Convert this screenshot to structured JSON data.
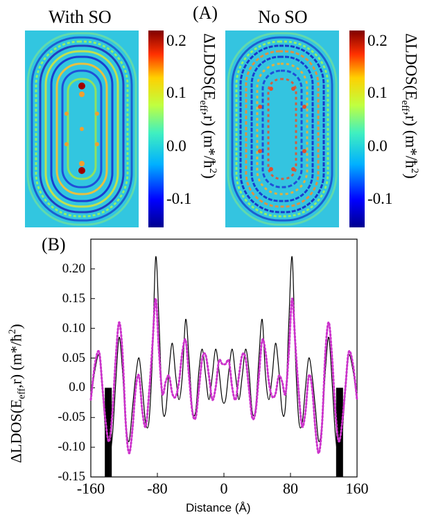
{
  "panel_a": {
    "label": "(A)",
    "left_title": "With SO",
    "right_title": "No SO",
    "colorbar_ticks": [
      "0.2",
      "0.1",
      "0.0",
      "-0.1"
    ],
    "colorbar_label_main": "ΔLDOS(E",
    "colorbar_label_sub": "eff",
    "colorbar_label_rest": ",r) (m*/ħ",
    "colorbar_label_sup": "2",
    "colorbar_label_end": ")",
    "colorbar_range": [
      -0.15,
      0.22
    ],
    "colors": {
      "low": "#00008f",
      "mid": "#7fff7f",
      "high": "#800000",
      "background": "#35c8e0"
    }
  },
  "panel_b": {
    "label": "(B)",
    "ylabel_main": "ΔLDOS(E",
    "ylabel_sub": "eff",
    "ylabel_rest": ",r) (m*/ħ",
    "ylabel_sup": "2",
    "ylabel_end": ")",
    "xlabel": "Distance (Å)"
  },
  "chart_data": {
    "type": "line",
    "title": "",
    "xlabel": "Distance (Å)",
    "ylabel": "ΔLDOS(Eeff,r) (m*/ħ2)",
    "xlim": [
      -160,
      160
    ],
    "ylim": [
      -0.15,
      0.25
    ],
    "xticks": [
      "-160",
      "-80",
      "0",
      "80",
      "160"
    ],
    "yticks": [
      "-0.15",
      "-0.10",
      "-0.05",
      "0.0",
      "0.05",
      "0.10",
      "0.15",
      "0.20"
    ],
    "ytick_values": [
      -0.15,
      -0.1,
      -0.05,
      0.0,
      0.05,
      0.1,
      0.15,
      0.2
    ],
    "xtick_values": [
      -160,
      -80,
      0,
      80,
      160
    ],
    "series": [
      {
        "name": "With SO",
        "style": "solid",
        "color": "#000000",
        "x": [
          -160,
          -155,
          -150,
          -146,
          -142,
          -138,
          -134,
          -130,
          -126,
          -122,
          -118,
          -114,
          -110,
          -106,
          -102,
          -98,
          -94,
          -90,
          -86,
          -82,
          -78,
          -74,
          -70,
          -66,
          -62,
          -58,
          -54,
          -50,
          -46,
          -42,
          -38,
          -34,
          -30,
          -26,
          -22,
          -18,
          -14,
          -10,
          -6,
          -2,
          2,
          6,
          10,
          14,
          18,
          22,
          26,
          30,
          34,
          38,
          42,
          46,
          50,
          54,
          58,
          62,
          66,
          70,
          74,
          78,
          82,
          86,
          90,
          94,
          98,
          102,
          106,
          110,
          114,
          118,
          122,
          126,
          130,
          134,
          138,
          142,
          146,
          150,
          155,
          160
        ],
        "y": [
          -0.02,
          0.03,
          0.055,
          0.0,
          -0.08,
          -0.115,
          -0.08,
          0.01,
          0.085,
          0.03,
          -0.06,
          -0.09,
          -0.035,
          0.02,
          0.05,
          0.0,
          -0.06,
          -0.055,
          0.05,
          0.22,
          0.11,
          -0.03,
          -0.04,
          0.03,
          0.075,
          0.02,
          -0.02,
          0.02,
          0.115,
          0.05,
          -0.035,
          -0.04,
          0.03,
          0.065,
          0.02,
          -0.02,
          0.02,
          0.065,
          0.03,
          -0.02,
          -0.02,
          0.03,
          0.065,
          0.02,
          -0.02,
          0.02,
          0.065,
          0.03,
          -0.04,
          -0.035,
          0.05,
          0.115,
          0.02,
          -0.02,
          0.02,
          0.075,
          0.03,
          -0.04,
          -0.03,
          0.11,
          0.22,
          0.05,
          -0.055,
          -0.06,
          0.0,
          0.05,
          0.02,
          -0.035,
          -0.09,
          -0.06,
          0.03,
          0.085,
          0.01,
          -0.08,
          -0.115,
          -0.08,
          0.0,
          0.055,
          0.03,
          -0.02
        ]
      },
      {
        "name": "No SO",
        "style": "dotted",
        "color": "#cc33cc",
        "x": [
          -160,
          -155,
          -150,
          -146,
          -142,
          -138,
          -134,
          -130,
          -126,
          -122,
          -118,
          -114,
          -110,
          -106,
          -102,
          -98,
          -94,
          -90,
          -86,
          -82,
          -78,
          -74,
          -70,
          -66,
          -62,
          -58,
          -54,
          -50,
          -46,
          -42,
          -38,
          -34,
          -30,
          -26,
          -22,
          -18,
          -14,
          -10,
          -6,
          -2,
          2,
          6,
          10,
          14,
          18,
          22,
          26,
          30,
          34,
          38,
          42,
          46,
          50,
          54,
          58,
          62,
          66,
          70,
          74,
          78,
          82,
          86,
          90,
          94,
          98,
          102,
          106,
          110,
          114,
          118,
          122,
          126,
          130,
          134,
          138,
          142,
          146,
          150,
          155,
          160
        ],
        "y": [
          -0.02,
          0.04,
          0.06,
          0.0,
          -0.06,
          -0.09,
          -0.04,
          0.05,
          0.11,
          0.06,
          -0.06,
          -0.11,
          -0.07,
          0.0,
          0.02,
          -0.04,
          -0.065,
          -0.01,
          0.07,
          0.15,
          0.06,
          -0.01,
          0.01,
          0.02,
          -0.01,
          -0.015,
          0.01,
          0.06,
          0.08,
          0.02,
          -0.04,
          -0.05,
          0.0,
          0.05,
          0.055,
          0.02,
          -0.02,
          0.0,
          0.045,
          0.04,
          0.04,
          0.045,
          0.0,
          -0.02,
          0.02,
          0.055,
          0.05,
          0.0,
          -0.05,
          -0.04,
          0.02,
          0.08,
          0.06,
          0.01,
          -0.015,
          -0.01,
          0.02,
          0.01,
          -0.01,
          0.06,
          0.15,
          0.07,
          -0.01,
          -0.065,
          -0.04,
          0.02,
          0.0,
          -0.07,
          -0.11,
          -0.06,
          0.06,
          0.11,
          0.05,
          -0.04,
          -0.09,
          -0.06,
          0.0,
          0.06,
          0.04,
          -0.02
        ]
      }
    ],
    "markers": [
      {
        "name": "left-adatom-bar",
        "x": -139,
        "y_bottom": -0.15,
        "y_top": 0.0
      },
      {
        "name": "right-adatom-bar",
        "x": 139,
        "y_bottom": -0.15,
        "y_top": 0.0
      }
    ]
  }
}
